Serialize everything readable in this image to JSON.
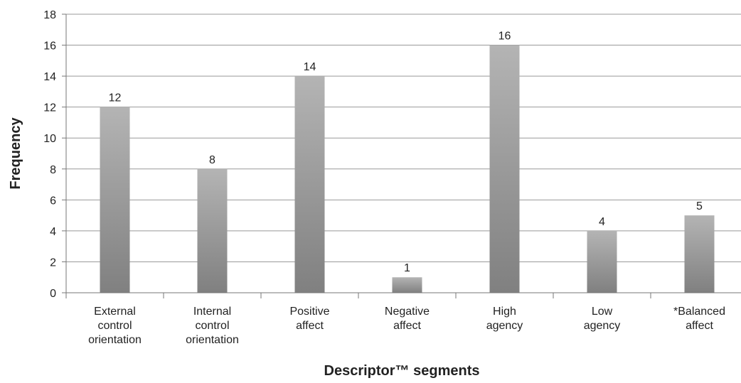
{
  "chart_data": {
    "type": "bar",
    "categories": [
      "External control orientation",
      "Internal control orientation",
      "Positive affect",
      "Negative affect",
      "High agency",
      "Low agency",
      "*Balanced affect"
    ],
    "values": [
      12,
      8,
      14,
      1,
      16,
      4,
      5
    ],
    "color": "#9e9e9e",
    "ylim": [
      0,
      18
    ],
    "yticks": [
      0,
      2,
      4,
      6,
      8,
      10,
      12,
      14,
      16,
      18
    ],
    "grid": true,
    "xlabel": "Descriptor™ segments",
    "ylabel": "Frequency"
  }
}
